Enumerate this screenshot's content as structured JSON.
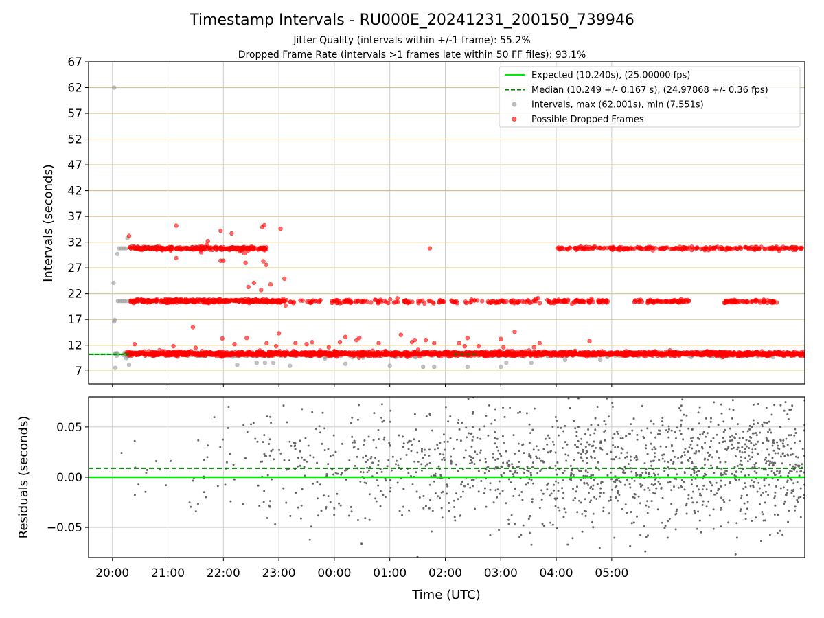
{
  "title": "Timestamp Intervals - RU000E_20241231_200150_739946",
  "subtitle_1": "Jitter Quality (intervals within +/-1 frame): 55.2%",
  "subtitle_2": "Dropped Frame Rate (intervals >1 frames late within 50 FF files): 93.1%",
  "colors": {
    "expected": "#00ee00",
    "median": "#007700",
    "intervals": "#999999",
    "dropped": "#ff0000",
    "residuals": "#666666",
    "hgrid_top": "#d8c48a",
    "grid": "#cccccc"
  },
  "chart_data": [
    {
      "type": "scatter",
      "panel": "intervals",
      "ylabel": "Intervals (seconds)",
      "xlabel": "",
      "x_unit": "hours since 20:00 UTC",
      "xlim": [
        -0.43,
        12.48
      ],
      "ylim": [
        4.5,
        67
      ],
      "yticks": [
        7,
        12,
        17,
        22,
        27,
        32,
        37,
        42,
        47,
        52,
        57,
        62,
        67
      ],
      "xticks": [
        0,
        1,
        2,
        3,
        4,
        5,
        6,
        7,
        8,
        9
      ],
      "xticklabels": [
        "20:00",
        "21:00",
        "22:00",
        "23:00",
        "00:00",
        "01:00",
        "02:00",
        "03:00",
        "04:00",
        "05:00"
      ],
      "grid": true,
      "legend_position": "top-right",
      "legend": [
        {
          "key": "expected",
          "label": "Expected (10.240s), (25.00000 fps)"
        },
        {
          "key": "median",
          "label": "Median (10.249 +/- 0.167 s), (24.97868 +/- 0.36 fps)"
        },
        {
          "key": "intervals",
          "label": "Intervals, max (62.001s), min (7.551s)"
        },
        {
          "key": "dropped",
          "label": "Possible Dropped Frames"
        }
      ],
      "expected_value": 10.24,
      "median_value": 10.249,
      "bands": [
        {
          "series": "dropped",
          "center": 10.35,
          "spread": 0.2,
          "x_start": 0.25,
          "x_end": 12.48,
          "count": 2200
        },
        {
          "series": "intervals",
          "center": 10.2,
          "spread": 0.25,
          "x_start": 0.0,
          "x_end": 12.3,
          "count": 280
        },
        {
          "series": "dropped",
          "center": 20.6,
          "spread": 0.15,
          "x_start": 0.3,
          "x_end": 1.95,
          "count": 260
        },
        {
          "series": "dropped",
          "center": 20.6,
          "spread": 0.15,
          "x_start": 1.95,
          "x_end": 3.1,
          "count": 150
        },
        {
          "series": "dropped",
          "center": 20.5,
          "spread": 0.2,
          "x_start": 3.1,
          "x_end": 8.0,
          "count": 170
        },
        {
          "series": "dropped",
          "center": 20.5,
          "spread": 0.15,
          "x_start": 8.0,
          "x_end": 9.0,
          "count": 60
        },
        {
          "series": "dropped",
          "center": 20.5,
          "spread": 0.15,
          "x_start": 9.4,
          "x_end": 10.4,
          "count": 70
        },
        {
          "series": "dropped",
          "center": 20.5,
          "spread": 0.15,
          "x_start": 11.0,
          "x_end": 12.0,
          "count": 60
        },
        {
          "series": "dropped",
          "center": 30.8,
          "spread": 0.15,
          "x_start": 0.3,
          "x_end": 2.8,
          "count": 320
        },
        {
          "series": "dropped",
          "center": 30.8,
          "spread": 0.15,
          "x_start": 8.0,
          "x_end": 12.48,
          "count": 250
        }
      ],
      "points": [
        {
          "series": "intervals",
          "x": 0.03,
          "y": 62.0
        },
        {
          "series": "intervals",
          "x": 0.02,
          "y": 24.1
        },
        {
          "series": "intervals",
          "x": 0.03,
          "y": 16.6
        },
        {
          "series": "intervals",
          "x": 0.04,
          "y": 16.9
        },
        {
          "series": "intervals",
          "x": 0.05,
          "y": 7.6
        },
        {
          "series": "intervals",
          "x": 0.09,
          "y": 29.7
        },
        {
          "series": "intervals",
          "x": 0.12,
          "y": 30.8
        },
        {
          "series": "intervals",
          "x": 0.16,
          "y": 30.8
        },
        {
          "series": "intervals",
          "x": 0.2,
          "y": 30.8
        },
        {
          "series": "intervals",
          "x": 0.24,
          "y": 30.8
        },
        {
          "series": "intervals",
          "x": 0.1,
          "y": 20.6
        },
        {
          "series": "intervals",
          "x": 0.14,
          "y": 20.6
        },
        {
          "series": "intervals",
          "x": 0.18,
          "y": 20.6
        },
        {
          "series": "intervals",
          "x": 0.22,
          "y": 20.6
        },
        {
          "series": "intervals",
          "x": 0.26,
          "y": 20.6
        },
        {
          "series": "intervals",
          "x": 0.27,
          "y": 32.8
        },
        {
          "series": "intervals",
          "x": 0.3,
          "y": 8.2
        },
        {
          "series": "intervals",
          "x": 2.25,
          "y": 8.2
        },
        {
          "series": "intervals",
          "x": 2.6,
          "y": 8.6
        },
        {
          "series": "intervals",
          "x": 2.75,
          "y": 8.6
        },
        {
          "series": "intervals",
          "x": 2.9,
          "y": 8.6
        },
        {
          "series": "intervals",
          "x": 3.2,
          "y": 8.0
        },
        {
          "series": "intervals",
          "x": 4.2,
          "y": 8.4
        },
        {
          "series": "intervals",
          "x": 5.0,
          "y": 8.0
        },
        {
          "series": "intervals",
          "x": 5.6,
          "y": 7.8
        },
        {
          "series": "intervals",
          "x": 5.8,
          "y": 7.8
        },
        {
          "series": "intervals",
          "x": 6.4,
          "y": 7.8
        },
        {
          "series": "intervals",
          "x": 7.0,
          "y": 7.8
        },
        {
          "series": "intervals",
          "x": 7.1,
          "y": 8.6
        },
        {
          "series": "intervals",
          "x": 7.55,
          "y": 8.6
        },
        {
          "series": "dropped",
          "x": 0.3,
          "y": 33.2
        },
        {
          "series": "dropped",
          "x": 0.4,
          "y": 12.2
        },
        {
          "series": "dropped",
          "x": 1.1,
          "y": 11.8
        },
        {
          "series": "dropped",
          "x": 1.15,
          "y": 35.2
        },
        {
          "series": "dropped",
          "x": 1.15,
          "y": 28.9
        },
        {
          "series": "dropped",
          "x": 1.45,
          "y": 15.5
        },
        {
          "series": "dropped",
          "x": 1.5,
          "y": 11.5
        },
        {
          "series": "dropped",
          "x": 1.6,
          "y": 30.0
        },
        {
          "series": "dropped",
          "x": 1.7,
          "y": 31.5
        },
        {
          "series": "dropped",
          "x": 1.72,
          "y": 32.2
        },
        {
          "series": "dropped",
          "x": 1.95,
          "y": 34.2
        },
        {
          "series": "dropped",
          "x": 1.95,
          "y": 28.4
        },
        {
          "series": "dropped",
          "x": 2.0,
          "y": 28.4
        },
        {
          "series": "dropped",
          "x": 1.98,
          "y": 13.3
        },
        {
          "series": "dropped",
          "x": 2.2,
          "y": 12.2
        },
        {
          "series": "dropped",
          "x": 2.15,
          "y": 33.7
        },
        {
          "series": "dropped",
          "x": 2.3,
          "y": 30.2
        },
        {
          "series": "dropped",
          "x": 2.38,
          "y": 29.8
        },
        {
          "series": "dropped",
          "x": 2.4,
          "y": 28.0
        },
        {
          "series": "dropped",
          "x": 2.42,
          "y": 13.4
        },
        {
          "series": "dropped",
          "x": 2.45,
          "y": 23.3
        },
        {
          "series": "dropped",
          "x": 2.55,
          "y": 24.1
        },
        {
          "series": "dropped",
          "x": 2.68,
          "y": 22.7
        },
        {
          "series": "dropped",
          "x": 2.7,
          "y": 34.9
        },
        {
          "series": "dropped",
          "x": 2.74,
          "y": 35.3
        },
        {
          "series": "dropped",
          "x": 2.72,
          "y": 28.3
        },
        {
          "series": "dropped",
          "x": 2.77,
          "y": 27.6
        },
        {
          "series": "dropped",
          "x": 2.78,
          "y": 12.4
        },
        {
          "series": "dropped",
          "x": 2.85,
          "y": 23.8
        },
        {
          "series": "dropped",
          "x": 2.95,
          "y": 11.8
        },
        {
          "series": "dropped",
          "x": 3.0,
          "y": 14.3
        },
        {
          "series": "dropped",
          "x": 3.03,
          "y": 34.6
        },
        {
          "series": "dropped",
          "x": 3.1,
          "y": 24.9
        },
        {
          "series": "dropped",
          "x": 3.12,
          "y": 19.7
        },
        {
          "series": "dropped",
          "x": 3.3,
          "y": 12.4
        },
        {
          "series": "dropped",
          "x": 3.5,
          "y": 12.2
        },
        {
          "series": "dropped",
          "x": 3.6,
          "y": 12.6
        },
        {
          "series": "dropped",
          "x": 3.9,
          "y": 11.6
        },
        {
          "series": "dropped",
          "x": 4.1,
          "y": 12.6
        },
        {
          "series": "dropped",
          "x": 4.2,
          "y": 13.6
        },
        {
          "series": "dropped",
          "x": 4.4,
          "y": 13.0
        },
        {
          "series": "dropped",
          "x": 4.45,
          "y": 13.4
        },
        {
          "series": "dropped",
          "x": 4.8,
          "y": 12.4
        },
        {
          "series": "dropped",
          "x": 5.2,
          "y": 14.0
        },
        {
          "series": "dropped",
          "x": 5.4,
          "y": 12.6
        },
        {
          "series": "dropped",
          "x": 5.45,
          "y": 13.0
        },
        {
          "series": "dropped",
          "x": 5.65,
          "y": 13.0
        },
        {
          "series": "dropped",
          "x": 5.72,
          "y": 30.8
        },
        {
          "series": "dropped",
          "x": 5.8,
          "y": 12.4
        },
        {
          "series": "dropped",
          "x": 6.25,
          "y": 12.4
        },
        {
          "series": "dropped",
          "x": 6.35,
          "y": 11.8
        },
        {
          "series": "dropped",
          "x": 6.4,
          "y": 13.4
        },
        {
          "series": "dropped",
          "x": 6.6,
          "y": 11.8
        },
        {
          "series": "dropped",
          "x": 7.0,
          "y": 13.2
        },
        {
          "series": "dropped",
          "x": 7.05,
          "y": 11.6
        },
        {
          "series": "dropped",
          "x": 7.25,
          "y": 14.6
        },
        {
          "series": "dropped",
          "x": 7.6,
          "y": 11.6
        },
        {
          "series": "dropped",
          "x": 7.7,
          "y": 12.4
        },
        {
          "series": "dropped",
          "x": 8.6,
          "y": 12.8
        },
        {
          "series": "dropped",
          "x": 10.05,
          "y": 11.0
        }
      ]
    },
    {
      "type": "scatter",
      "panel": "residuals",
      "ylabel": "Residuals (seconds)",
      "xlabel": "Time (UTC)",
      "xlim": [
        -0.43,
        12.48
      ],
      "ylim": [
        -0.08,
        0.08
      ],
      "yticks": [
        -0.05,
        0.0,
        0.05
      ],
      "yticklabels": [
        "−0.05",
        "0.00",
        "0.05"
      ],
      "xticks": [
        0,
        1,
        2,
        3,
        4,
        5,
        6,
        7,
        8,
        9
      ],
      "xticklabels": [
        "20:00",
        "21:00",
        "22:00",
        "23:00",
        "00:00",
        "01:00",
        "02:00",
        "03:00",
        "04:00",
        "05:00"
      ],
      "grid": true,
      "expected_residual": 0.0,
      "median_residual": 0.009,
      "residual_cloud": {
        "x_start": 0.0,
        "x_end": 12.48,
        "count": 1500,
        "center": 0.009,
        "spread": 0.03
      }
    }
  ]
}
